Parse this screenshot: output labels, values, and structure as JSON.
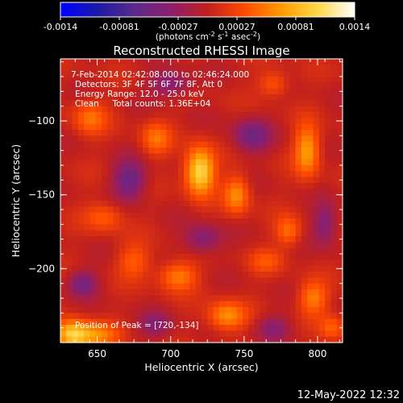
{
  "colorbar": {
    "ticks": [
      "-0.0014",
      "-0.00081",
      "-0.00027",
      "0.00027",
      "0.00081",
      "0.0014"
    ],
    "unit_main": "(photons cm",
    "unit_sup1": "-2",
    "unit_mid": " s",
    "unit_sup2": "-1",
    "unit_end": " asec",
    "unit_sup3": "-2",
    "unit_close": ")",
    "colors": [
      "#0000ff",
      "#1a1aa8",
      "#5a2a8a",
      "#8b1f6e",
      "#c0201e",
      "#ff4a00",
      "#ff9a00",
      "#ffd84a",
      "#ffffff"
    ]
  },
  "chart_data": {
    "type": "heatmap",
    "title": "Reconstructed RHESSI Image",
    "xlabel": "Heliocentric X (arcsec)",
    "ylabel": "Heliocentric Y (arcsec)",
    "xlim": [
      625,
      817
    ],
    "ylim": [
      -250,
      -58
    ],
    "xticks": [
      650,
      700,
      750,
      800
    ],
    "yticks": [
      -100,
      -150,
      -200
    ],
    "ytick_labels": [
      "−100",
      "−150",
      "−200"
    ],
    "color_range": [
      -0.0014,
      0.0014
    ],
    "peak": [
      720,
      -134
    ],
    "annotations": {
      "line1": "7-Feb-2014 02:42:08.000 to 02:46:24.000",
      "line2": "Detectors: 3F 4F 5F 6F 7F 8F, Att 0",
      "line3": "Energy Range: 12.0 - 25.0 keV",
      "line4": "Clean     Total counts: 1.36E+04",
      "peak_label": "Position of Peak = [720,-134]"
    },
    "sources": [
      {
        "x": 720,
        "y": -134,
        "sx": 7,
        "sy": 11,
        "amp": 0.0014
      },
      {
        "x": 633,
        "y": -245,
        "sx": 8,
        "sy": 7,
        "amp": 0.0012
      },
      {
        "x": 793,
        "y": -120,
        "sx": 6,
        "sy": 12,
        "amp": 0.0009
      },
      {
        "x": 745,
        "y": -150,
        "sx": 6,
        "sy": 9,
        "amp": 0.0008
      },
      {
        "x": 738,
        "y": -232,
        "sx": 9,
        "sy": 7,
        "amp": 0.0008
      },
      {
        "x": 705,
        "y": -205,
        "sx": 9,
        "sy": 7,
        "amp": 0.0007
      },
      {
        "x": 650,
        "y": -245,
        "sx": 10,
        "sy": 6,
        "amp": 0.0007
      },
      {
        "x": 797,
        "y": -220,
        "sx": 7,
        "sy": 8,
        "amp": 0.0007
      },
      {
        "x": 780,
        "y": -175,
        "sx": 6,
        "sy": 7,
        "amp": 0.0006
      },
      {
        "x": 645,
        "y": -98,
        "sx": 8,
        "sy": 8,
        "amp": 0.0006
      },
      {
        "x": 690,
        "y": -112,
        "sx": 7,
        "sy": 8,
        "amp": 0.0006
      },
      {
        "x": 675,
        "y": -195,
        "sx": 8,
        "sy": 8,
        "amp": 0.0005
      },
      {
        "x": 655,
        "y": -165,
        "sx": 9,
        "sy": 7,
        "amp": 0.0005
      },
      {
        "x": 770,
        "y": -75,
        "sx": 7,
        "sy": 6,
        "amp": 0.0005
      },
      {
        "x": 810,
        "y": -240,
        "sx": 6,
        "sy": 6,
        "amp": 0.0005
      },
      {
        "x": 765,
        "y": -195,
        "sx": 8,
        "sy": 6,
        "amp": 0.0004
      },
      {
        "x": 640,
        "y": -210,
        "sx": 7,
        "sy": 6,
        "amp": -0.0007
      },
      {
        "x": 672,
        "y": -140,
        "sx": 8,
        "sy": 9,
        "amp": -0.0008
      },
      {
        "x": 755,
        "y": -110,
        "sx": 9,
        "sy": 8,
        "amp": -0.0007
      },
      {
        "x": 700,
        "y": -75,
        "sx": 10,
        "sy": 6,
        "amp": -0.0006
      },
      {
        "x": 805,
        "y": -170,
        "sx": 6,
        "sy": 10,
        "amp": -0.0006
      },
      {
        "x": 722,
        "y": -180,
        "sx": 9,
        "sy": 7,
        "amp": -0.0006
      },
      {
        "x": 690,
        "y": -238,
        "sx": 8,
        "sy": 6,
        "amp": -0.0005
      },
      {
        "x": 770,
        "y": -240,
        "sx": 8,
        "sy": 6,
        "amp": -0.0005
      }
    ]
  },
  "footer": {
    "timestamp": "12-May-2022 12:32"
  }
}
